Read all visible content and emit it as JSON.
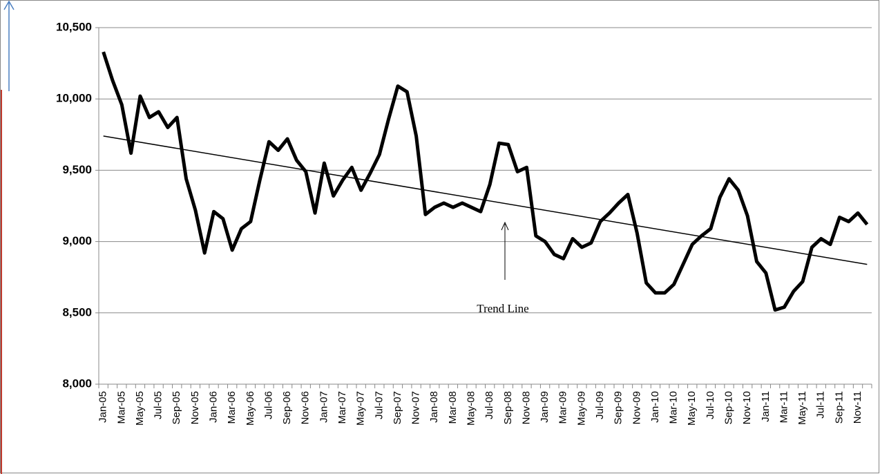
{
  "chart_data": {
    "type": "line",
    "categories": [
      "Jan-05",
      null,
      "Mar-05",
      null,
      "May-05",
      null,
      "Jul-05",
      null,
      "Sep-05",
      null,
      "Nov-05",
      null,
      "Jan-06",
      null,
      "Mar-06",
      null,
      "May-06",
      null,
      "Jul-06",
      null,
      "Sep-06",
      null,
      "Nov-06",
      null,
      "Jan-07",
      null,
      "Mar-07",
      null,
      "May-07",
      null,
      "Jul-07",
      null,
      "Sep-07",
      null,
      "Nov-07",
      null,
      "Jan-08",
      null,
      "Mar-08",
      null,
      "May-08",
      null,
      "Jul-08",
      null,
      "Sep-08",
      null,
      "Nov-08",
      null,
      "Jan-09",
      null,
      "Mar-09",
      null,
      "May-09",
      null,
      "Jul-09",
      null,
      "Sep-09",
      null,
      "Nov-09",
      null,
      "Jan-10",
      null,
      "Mar-10",
      null,
      "May-10",
      null,
      "Jul-10",
      null,
      "Sep-10",
      null,
      "Nov-10",
      null,
      "Jan-11",
      null,
      "Mar-11",
      null,
      "May-11",
      null,
      "Jul-11",
      null,
      "Sep-11",
      null,
      "Nov-11",
      null
    ],
    "values": [
      10330,
      10130,
      9960,
      9620,
      10020,
      9870,
      9910,
      9800,
      9870,
      9440,
      9220,
      8920,
      9210,
      9160,
      8940,
      9090,
      9140,
      9430,
      9700,
      9640,
      9720,
      9570,
      9490,
      9200,
      9550,
      9320,
      9430,
      9520,
      9360,
      9480,
      9610,
      9860,
      10090,
      10050,
      9740,
      9190,
      9240,
      9270,
      9240,
      9270,
      9240,
      9210,
      9400,
      9690,
      9680,
      9490,
      9520,
      9040,
      9000,
      8910,
      8880,
      9020,
      8960,
      8990,
      9140,
      9200,
      9270,
      9330,
      9060,
      8710,
      8640,
      8640,
      8700,
      8840,
      8980,
      9040,
      9090,
      9310,
      9440,
      9360,
      9180,
      8860,
      8780,
      8520,
      8540,
      8650,
      8720,
      8960,
      9020,
      8980,
      9170,
      9140,
      9200,
      9120
    ],
    "color": "#000000",
    "trend": {
      "values": [
        9740,
        8840
      ],
      "color": "#000000"
    },
    "annotation": "Trend Line",
    "ylim": [
      8000,
      10500
    ],
    "yticks": [
      {
        "value": 8000,
        "label": "8,000"
      },
      {
        "value": 8500,
        "label": "8,500"
      },
      {
        "value": 9000,
        "label": "9,000"
      },
      {
        "value": 9500,
        "label": "9,500"
      },
      {
        "value": 10000,
        "label": "10,000"
      },
      {
        "value": 10500,
        "label": "10,500"
      }
    ],
    "grid": true
  }
}
